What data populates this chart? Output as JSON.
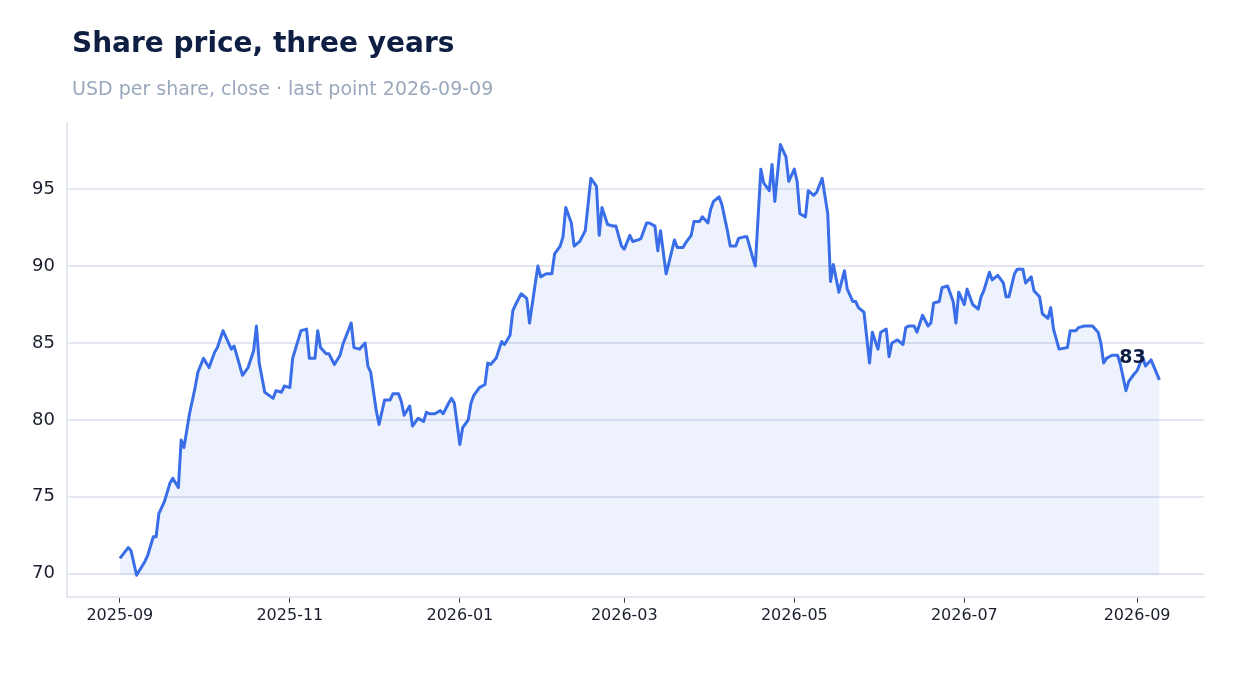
{
  "chart_data": {
    "type": "area",
    "title": "Share price, three years",
    "subtitle": "USD per share, close · last point 2026-09-09",
    "x": [
      "2025-09-01",
      "2025-09-04",
      "2025-09-05",
      "2025-09-07",
      "2025-09-10",
      "2025-09-11",
      "2025-09-13",
      "2025-09-14",
      "2025-09-15",
      "2025-09-17",
      "2025-09-19",
      "2025-09-20",
      "2025-09-22",
      "2025-09-23",
      "2025-09-24",
      "2025-09-26",
      "2025-09-28",
      "2025-09-29",
      "2025-10-01",
      "2025-10-03",
      "2025-10-05",
      "2025-10-06",
      "2025-10-08",
      "2025-10-11",
      "2025-10-12",
      "2025-10-15",
      "2025-10-17",
      "2025-10-19",
      "2025-10-20",
      "2025-10-21",
      "2025-10-23",
      "2025-10-26",
      "2025-10-27",
      "2025-10-29",
      "2025-10-30",
      "2025-11-01",
      "2025-11-02",
      "2025-11-03",
      "2025-11-05",
      "2025-11-07",
      "2025-11-08",
      "2025-11-10",
      "2025-11-11",
      "2025-11-12",
      "2025-11-14",
      "2025-11-15",
      "2025-11-17",
      "2025-11-19",
      "2025-11-20",
      "2025-11-23",
      "2025-11-24",
      "2025-11-26",
      "2025-11-28",
      "2025-11-29",
      "2025-11-30",
      "2025-12-02",
      "2025-12-03",
      "2025-12-05",
      "2025-12-07",
      "2025-12-08",
      "2025-12-10",
      "2025-12-11",
      "2025-12-12",
      "2025-12-14",
      "2025-12-15",
      "2025-12-17",
      "2025-12-19",
      "2025-12-20",
      "2025-12-21",
      "2025-12-23",
      "2025-12-25",
      "2025-12-26",
      "2025-12-28",
      "2025-12-29",
      "2025-12-30",
      "2026-01-01",
      "2026-01-02",
      "2026-01-04",
      "2026-01-05",
      "2026-01-06",
      "2026-01-08",
      "2026-01-10",
      "2026-01-11",
      "2026-01-12",
      "2026-01-14",
      "2026-01-16",
      "2026-01-17",
      "2026-01-19",
      "2026-01-20",
      "2026-01-21",
      "2026-01-23",
      "2026-01-25",
      "2026-01-26",
      "2026-01-28",
      "2026-01-29",
      "2026-01-30",
      "2026-02-01",
      "2026-02-03",
      "2026-02-04",
      "2026-02-06",
      "2026-02-07",
      "2026-02-08",
      "2026-02-10",
      "2026-02-11",
      "2026-02-13",
      "2026-02-15",
      "2026-02-16",
      "2026-02-17",
      "2026-02-19",
      "2026-02-20",
      "2026-02-21",
      "2026-02-23",
      "2026-02-25",
      "2026-02-26",
      "2026-02-28",
      "2026-03-01",
      "2026-03-03",
      "2026-03-04",
      "2026-03-06",
      "2026-03-07",
      "2026-03-09",
      "2026-03-10",
      "2026-03-12",
      "2026-03-13",
      "2026-03-14",
      "2026-03-16",
      "2026-03-17",
      "2026-03-19",
      "2026-03-20",
      "2026-03-22",
      "2026-03-23",
      "2026-03-25",
      "2026-03-26",
      "2026-03-28",
      "2026-03-29",
      "2026-03-31",
      "2026-04-01",
      "2026-04-02",
      "2026-04-04",
      "2026-04-05",
      "2026-04-07",
      "2026-04-08",
      "2026-04-10",
      "2026-04-11",
      "2026-04-13",
      "2026-04-14",
      "2026-04-16",
      "2026-04-17",
      "2026-04-19",
      "2026-04-20",
      "2026-04-22",
      "2026-04-23",
      "2026-04-24",
      "2026-04-26",
      "2026-04-28",
      "2026-04-29",
      "2026-05-01",
      "2026-05-02",
      "2026-05-03",
      "2026-05-05",
      "2026-05-06",
      "2026-05-08",
      "2026-05-09",
      "2026-05-11",
      "2026-05-13",
      "2026-05-14",
      "2026-05-15",
      "2026-05-17",
      "2026-05-19",
      "2026-05-20",
      "2026-05-22",
      "2026-05-23",
      "2026-05-24",
      "2026-05-26",
      "2026-05-28",
      "2026-05-29",
      "2026-05-31",
      "2026-06-01",
      "2026-06-03",
      "2026-06-04",
      "2026-06-05",
      "2026-06-07",
      "2026-06-09",
      "2026-06-10",
      "2026-06-11",
      "2026-06-13",
      "2026-06-14",
      "2026-06-16",
      "2026-06-18",
      "2026-06-19",
      "2026-06-20",
      "2026-06-22",
      "2026-06-23",
      "2026-06-25",
      "2026-06-27",
      "2026-06-28",
      "2026-06-29",
      "2026-07-01",
      "2026-07-02",
      "2026-07-04",
      "2026-07-06",
      "2026-07-07",
      "2026-07-08",
      "2026-07-10",
      "2026-07-11",
      "2026-07-13",
      "2026-07-15",
      "2026-07-16",
      "2026-07-17",
      "2026-07-19",
      "2026-07-20",
      "2026-07-22",
      "2026-07-23",
      "2026-07-25",
      "2026-07-26",
      "2026-07-28",
      "2026-07-29",
      "2026-07-31",
      "2026-08-01",
      "2026-08-02",
      "2026-08-04",
      "2026-08-07",
      "2026-08-08",
      "2026-08-10",
      "2026-08-11",
      "2026-08-13",
      "2026-08-16",
      "2026-08-18",
      "2026-08-19",
      "2026-08-20",
      "2026-08-21",
      "2026-08-23",
      "2026-08-25",
      "2026-08-26",
      "2026-08-28",
      "2026-08-29",
      "2026-08-31",
      "2026-09-01",
      "2026-09-03",
      "2026-09-04",
      "2026-09-06",
      "2026-09-09"
    ],
    "series": [
      {
        "color": "#3a6ee8",
        "values": [
          71.0,
          71.7,
          71.5,
          69.9,
          70.8,
          71.2,
          72.4,
          72.4,
          73.9,
          74.7,
          75.9,
          76.2,
          75.6,
          78.7,
          78.2,
          80.4,
          82.1,
          83.1,
          84.0,
          83.4,
          84.4,
          84.7,
          85.8,
          84.6,
          84.8,
          82.9,
          83.4,
          84.5,
          86.1,
          83.7,
          81.8,
          81.4,
          81.9,
          81.8,
          82.2,
          82.1,
          84.0,
          84.6,
          85.8,
          85.9,
          84.0,
          84.0,
          85.8,
          84.7,
          84.3,
          84.3,
          83.6,
          84.2,
          84.9,
          86.3,
          84.7,
          84.6,
          85.0,
          83.5,
          83.1,
          80.6,
          79.7,
          81.3,
          81.3,
          81.7,
          81.7,
          81.2,
          80.3,
          80.9,
          79.6,
          80.1,
          79.9,
          80.5,
          80.4,
          80.4,
          80.6,
          80.4,
          81.1,
          81.4,
          81.1,
          78.4,
          79.5,
          80.0,
          81.1,
          81.6,
          82.1,
          82.3,
          83.7,
          83.6,
          84.0,
          85.1,
          84.9,
          85.5,
          87.1,
          87.5,
          88.2,
          87.9,
          86.3,
          88.8,
          90.0,
          89.3,
          89.5,
          89.5,
          90.8,
          91.3,
          91.9,
          93.8,
          92.8,
          91.3,
          91.6,
          92.3,
          94.0,
          95.7,
          95.2,
          92.0,
          93.8,
          92.7,
          92.6,
          92.6,
          91.3,
          91.1,
          92.0,
          91.6,
          91.7,
          91.8,
          92.8,
          92.8,
          92.6,
          91.0,
          92.3,
          89.5,
          90.2,
          91.7,
          91.2,
          91.2,
          91.5,
          92.0,
          92.9,
          92.9,
          93.2,
          92.8,
          93.7,
          94.2,
          94.5,
          94.0,
          92.3,
          91.3,
          91.3,
          91.8,
          91.9,
          91.9,
          90.6,
          90.0,
          96.3,
          95.4,
          94.9,
          96.6,
          94.2,
          97.9,
          97.1,
          95.5,
          96.3,
          95.5,
          93.4,
          93.2,
          94.9,
          94.6,
          94.8,
          95.7,
          93.4,
          89.0,
          90.1,
          88.3,
          89.7,
          88.5,
          87.7,
          87.7,
          87.3,
          87.0,
          83.7,
          85.7,
          84.6,
          85.7,
          85.9,
          84.1,
          85.0,
          85.2,
          84.9,
          86.0,
          86.1,
          86.1,
          85.7,
          86.8,
          86.1,
          86.3,
          87.6,
          87.7,
          88.6,
          88.7,
          87.7,
          86.3,
          88.3,
          87.5,
          88.5,
          87.5,
          87.2,
          88.0,
          88.4,
          89.6,
          89.1,
          89.4,
          88.9,
          88.0,
          88.0,
          89.5,
          89.8,
          89.8,
          88.9,
          89.3,
          88.4,
          88.0,
          86.9,
          86.6,
          87.3,
          85.9,
          84.6,
          84.7,
          85.8,
          85.8,
          86.0,
          86.1,
          86.1,
          85.7,
          85.0,
          83.7,
          84.0,
          84.2,
          84.2,
          83.6,
          81.9,
          82.5,
          83.0,
          83.2,
          84.1,
          83.5,
          83.9,
          82.6
        ]
      }
    ],
    "xlim": [
      "2025-08-13",
      "2026-09-25"
    ],
    "xticks": [
      "2025-09",
      "2025-11",
      "2026-01",
      "2026-03",
      "2026-05",
      "2026-07",
      "2026-09"
    ],
    "ylim": [
      68.5,
      99.3
    ],
    "yticks": [
      70,
      75,
      80,
      85,
      90,
      95
    ],
    "grid": "y",
    "annotations": [
      {
        "text": "83",
        "x": "2026-09-09",
        "y": 82.6
      }
    ]
  }
}
